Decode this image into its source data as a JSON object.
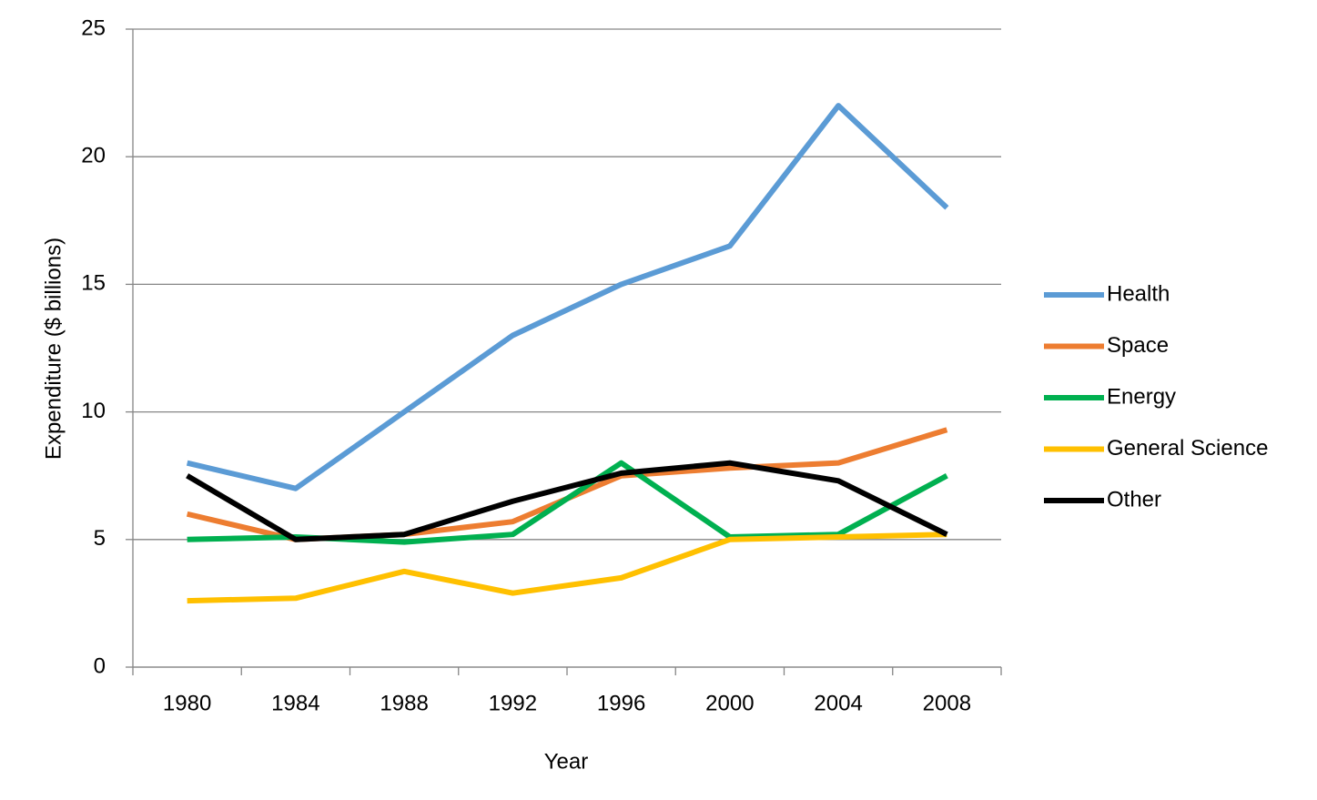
{
  "chart_data": {
    "type": "line",
    "x_label": "Year",
    "y_label": "Expenditure  ($ billions)",
    "categories": [
      "1980",
      "1984",
      "1988",
      "1992",
      "1996",
      "2000",
      "2004",
      "2008"
    ],
    "series": [
      {
        "name": "Health",
        "color": "#5b9bd5",
        "values": [
          8,
          7,
          10,
          13,
          15,
          16.5,
          22,
          18
        ]
      },
      {
        "name": "Space",
        "color": "#ed7d31",
        "values": [
          6,
          5,
          5.2,
          5.7,
          7.5,
          7.8,
          8,
          9.3
        ]
      },
      {
        "name": "Energy",
        "color": "#00b050",
        "values": [
          5,
          5.1,
          4.9,
          5.2,
          8,
          5.1,
          5.2,
          7.5
        ]
      },
      {
        "name": "General Science",
        "color": "#ffc000",
        "values": [
          2.6,
          2.7,
          3.75,
          2.9,
          3.5,
          5,
          5.1,
          5.2
        ]
      },
      {
        "name": "Other",
        "color": "#000000",
        "values": [
          7.5,
          5,
          5.2,
          6.5,
          7.6,
          8,
          7.3,
          5.2
        ]
      }
    ],
    "ylim": [
      0,
      25
    ],
    "yticks": [
      0,
      5,
      10,
      15,
      20,
      25
    ],
    "grid": true,
    "legend": "right"
  }
}
